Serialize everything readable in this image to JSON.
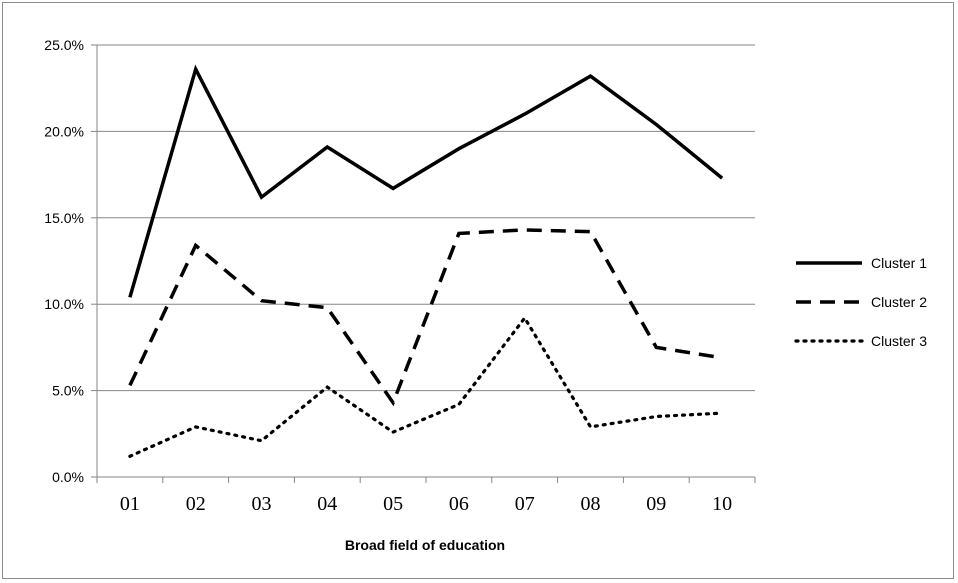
{
  "chart_data": {
    "type": "line",
    "categories": [
      "01",
      "02",
      "03",
      "04",
      "05",
      "06",
      "07",
      "08",
      "09",
      "10"
    ],
    "series": [
      {
        "name": "Cluster 1",
        "style": "solid",
        "values": [
          10.4,
          23.6,
          16.2,
          19.1,
          16.7,
          19.0,
          21.0,
          23.2,
          20.4,
          17.3
        ]
      },
      {
        "name": "Cluster 2",
        "style": "dashed",
        "values": [
          5.3,
          13.4,
          10.2,
          9.8,
          4.3,
          14.1,
          14.3,
          14.2,
          7.5,
          6.9
        ]
      },
      {
        "name": "Cluster 3",
        "style": "dotted",
        "values": [
          1.2,
          2.9,
          2.1,
          5.2,
          2.6,
          4.2,
          9.2,
          2.9,
          3.5,
          3.7
        ]
      }
    ],
    "yticks": [
      "0.0%",
      "5.0%",
      "10.0%",
      "15.0%",
      "20.0%",
      "25.0%"
    ],
    "ylim": [
      0,
      25
    ],
    "xlabel": "Broad field of education",
    "ylabel": "",
    "title": "",
    "grid": true,
    "legend": "right",
    "line_color": "#000000",
    "grid_color": "#868686"
  }
}
